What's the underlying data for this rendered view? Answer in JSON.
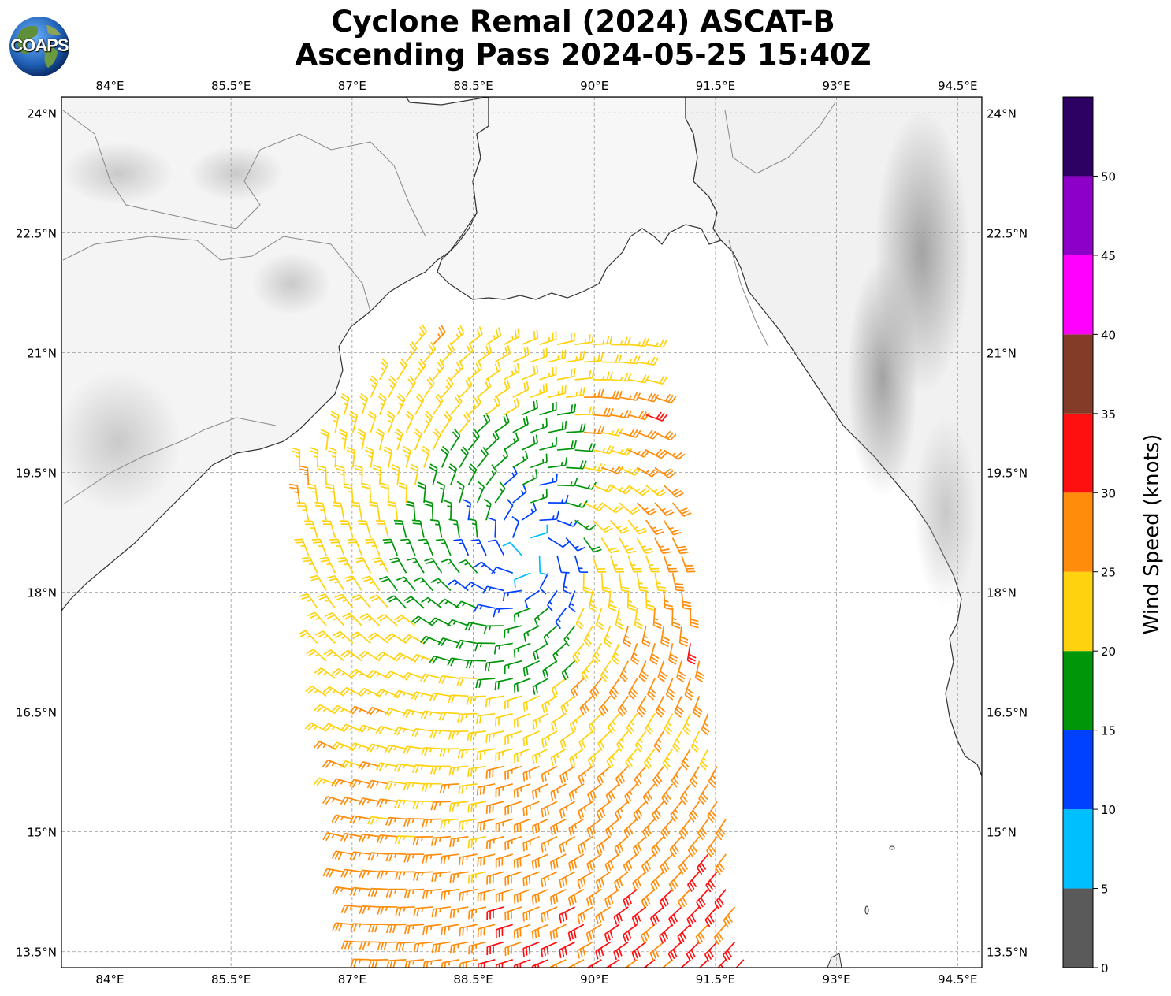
{
  "header": {
    "title_line1": "Cyclone Remal (2024) ASCAT-B",
    "title_line2": "Ascending Pass 2024-05-25 15:40Z",
    "logo_text": "COAPS"
  },
  "map": {
    "lon_ticks": [
      "84°E",
      "85.5°E",
      "87°E",
      "88.5°E",
      "90°E",
      "91.5°E",
      "93°E",
      "94.5°E"
    ],
    "lat_ticks": [
      "24°N",
      "22.5°N",
      "21°N",
      "19.5°N",
      "18°N",
      "16.5°N",
      "15°N",
      "13.5°N"
    ],
    "lon_range": [
      83.4,
      94.8
    ],
    "lat_range": [
      13.3,
      24.2
    ],
    "gridlines": true,
    "center": {
      "lon": 89.2,
      "lat": 18.5
    }
  },
  "colorbar": {
    "label": "Wind Speed (knots)",
    "ticks": [
      "0",
      "5",
      "10",
      "15",
      "20",
      "25",
      "30",
      "35",
      "40",
      "45",
      "50"
    ],
    "bins": [
      {
        "min": 0,
        "max": 5,
        "color": "#5a5a5a"
      },
      {
        "min": 5,
        "max": 10,
        "color": "#00bfff"
      },
      {
        "min": 10,
        "max": 15,
        "color": "#0040ff"
      },
      {
        "min": 15,
        "max": 20,
        "color": "#00960a"
      },
      {
        "min": 20,
        "max": 25,
        "color": "#ffd20f"
      },
      {
        "min": 25,
        "max": 30,
        "color": "#ff8c0a"
      },
      {
        "min": 30,
        "max": 35,
        "color": "#ff1010"
      },
      {
        "min": 35,
        "max": 40,
        "color": "#823c28"
      },
      {
        "min": 40,
        "max": 45,
        "color": "#ff00ff"
      },
      {
        "min": 45,
        "max": 50,
        "color": "#8c00c8"
      },
      {
        "min": 50,
        "max": 55,
        "color": "#2d0064"
      }
    ]
  }
}
